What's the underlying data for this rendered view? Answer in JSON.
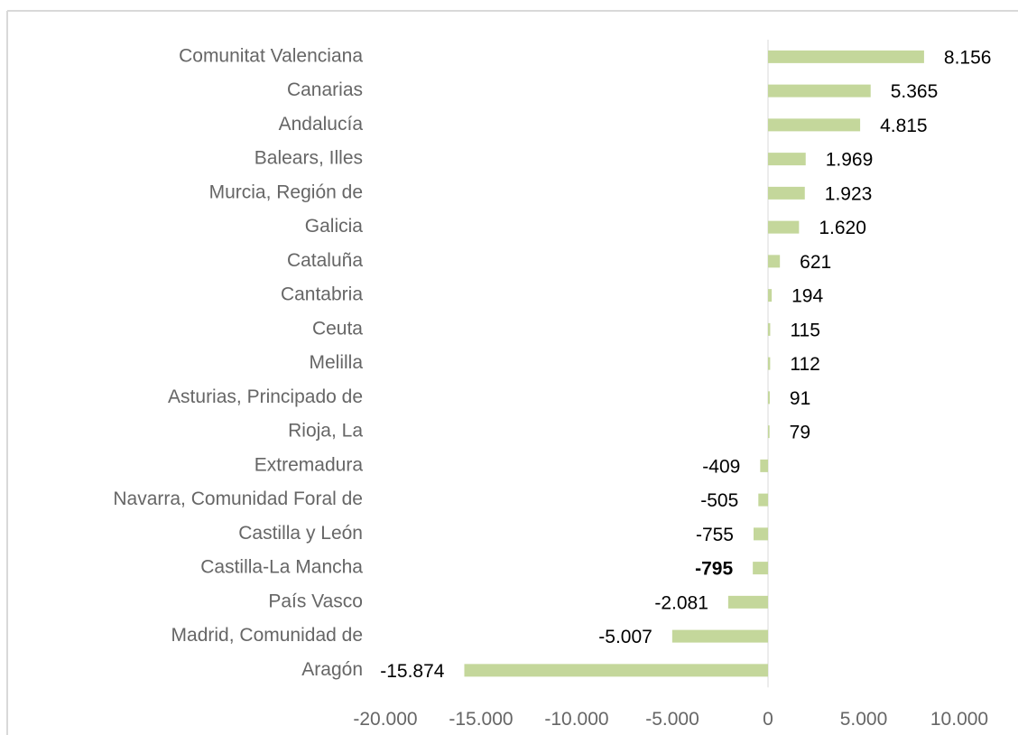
{
  "chart_data": {
    "type": "barh",
    "categories": [
      "Comunitat Valenciana",
      "Canarias",
      "Andalucía",
      "Balears, Illes",
      "Murcia, Región de",
      "Galicia",
      "Cataluña",
      "Cantabria",
      "Ceuta",
      "Melilla",
      "Asturias, Principado de",
      "Rioja, La",
      "Extremadura",
      "Navarra, Comunidad Foral de",
      "Castilla y León",
      "Castilla-La Mancha",
      "País Vasco",
      "Madrid, Comunidad de",
      "Aragón"
    ],
    "values": [
      8156,
      5365,
      4815,
      1969,
      1923,
      1620,
      621,
      194,
      115,
      112,
      91,
      79,
      -409,
      -505,
      -755,
      -795,
      -2081,
      -5007,
      -15874
    ],
    "value_labels": [
      "8.156",
      "5.365",
      "4.815",
      "1.969",
      "1.923",
      "1.620",
      "621",
      "194",
      "115",
      "112",
      "91",
      "79",
      "-409",
      "-505",
      "-755",
      "-795",
      "-2.081",
      "-5.007",
      "-15.874"
    ],
    "color": "#c4d79b",
    "xlim": [
      -20000,
      10000
    ],
    "xticks": [
      {
        "value": -20000,
        "label": "-20.000"
      },
      {
        "value": -15000,
        "label": "-15.000"
      },
      {
        "value": -10000,
        "label": "-10.000"
      },
      {
        "value": -5000,
        "label": "-5.000"
      },
      0,
      {
        "value": 5000,
        "label": "5.000"
      },
      {
        "value": 10000,
        "label": "10.000"
      }
    ]
  }
}
